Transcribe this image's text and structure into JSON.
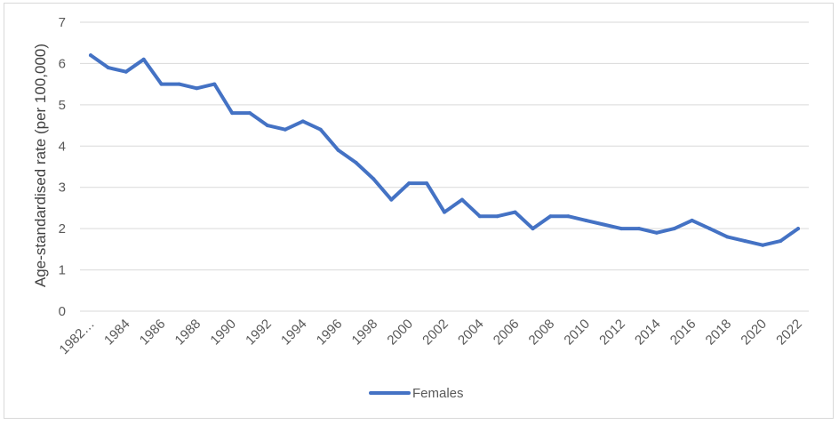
{
  "chart_data": {
    "type": "line",
    "title": "",
    "xlabel": "",
    "ylabel": "Age-standardised rate (per 100,000)",
    "ylim": [
      0,
      7
    ],
    "yticks": [
      0,
      1,
      2,
      3,
      4,
      5,
      6,
      7
    ],
    "grid": true,
    "legend_position": "bottom",
    "x_tick_labels": [
      "1982…",
      "1984",
      "1986",
      "1988",
      "1990",
      "1992",
      "1994",
      "1996",
      "1998",
      "2000",
      "2002",
      "2004",
      "2006",
      "2008",
      "2010",
      "2012",
      "2014",
      "2016",
      "2018",
      "2020",
      "2022"
    ],
    "x": [
      1982,
      1983,
      1984,
      1985,
      1986,
      1987,
      1988,
      1989,
      1990,
      1991,
      1992,
      1993,
      1994,
      1995,
      1996,
      1997,
      1998,
      1999,
      2000,
      2001,
      2002,
      2003,
      2004,
      2005,
      2006,
      2007,
      2008,
      2009,
      2010,
      2011,
      2012,
      2013,
      2014,
      2015,
      2016,
      2017,
      2018,
      2019,
      2020,
      2021,
      2022
    ],
    "series": [
      {
        "name": "Females",
        "color": "#4472c4",
        "values": [
          6.2,
          5.9,
          5.8,
          6.1,
          5.5,
          5.5,
          5.4,
          5.5,
          4.8,
          4.8,
          4.5,
          4.4,
          4.6,
          4.4,
          3.9,
          3.6,
          3.2,
          2.7,
          3.1,
          3.1,
          2.4,
          2.7,
          2.3,
          2.3,
          2.4,
          2.0,
          2.3,
          2.3,
          2.2,
          2.1,
          2.0,
          2.0,
          1.9,
          2.0,
          2.2,
          2.0,
          1.8,
          1.7,
          1.6,
          1.7,
          2.0
        ]
      }
    ]
  }
}
